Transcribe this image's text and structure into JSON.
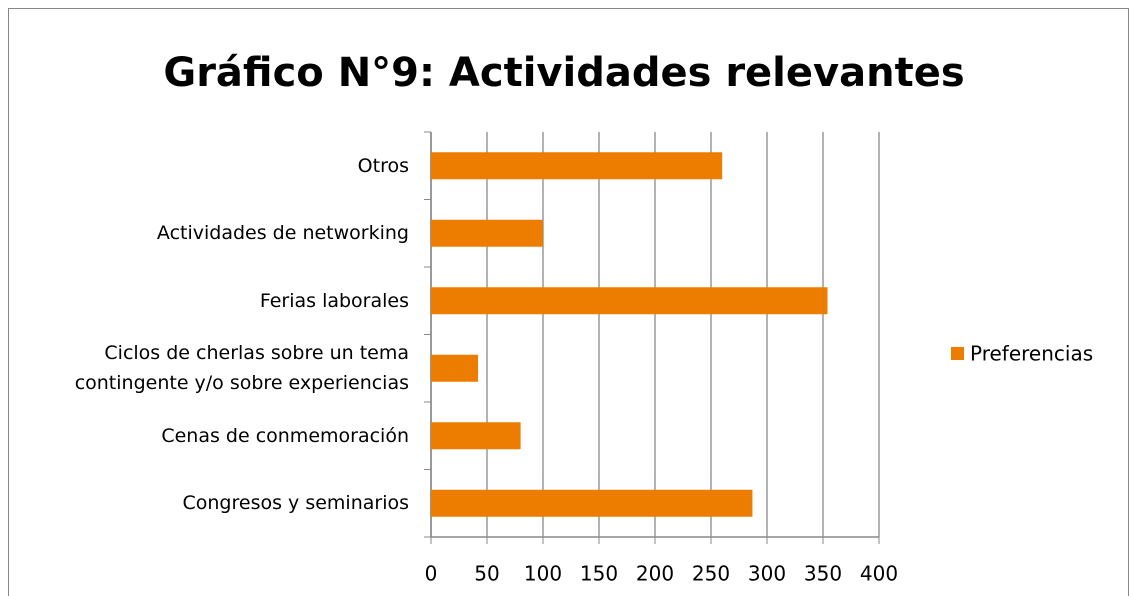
{
  "chart_data": {
    "type": "bar",
    "orientation": "horizontal",
    "title": "Gráfico N°9: Actividades relevantes",
    "categories": [
      "Congresos y seminarios",
      "Cenas de conmemoración",
      "Ciclos de cherlas sobre un tema contingente y/o sobre experiencias",
      "Ferias laborales",
      "Actividades de networking",
      "Otros"
    ],
    "series": [
      {
        "name": "Preferencias",
        "color": "#ed7d00",
        "values": [
          287,
          80,
          42,
          354,
          100,
          260
        ]
      }
    ],
    "xlim": [
      0,
      400
    ],
    "xticks": [
      0,
      50,
      100,
      150,
      200,
      250,
      300,
      350,
      400
    ],
    "grid": true,
    "legend": "right"
  }
}
